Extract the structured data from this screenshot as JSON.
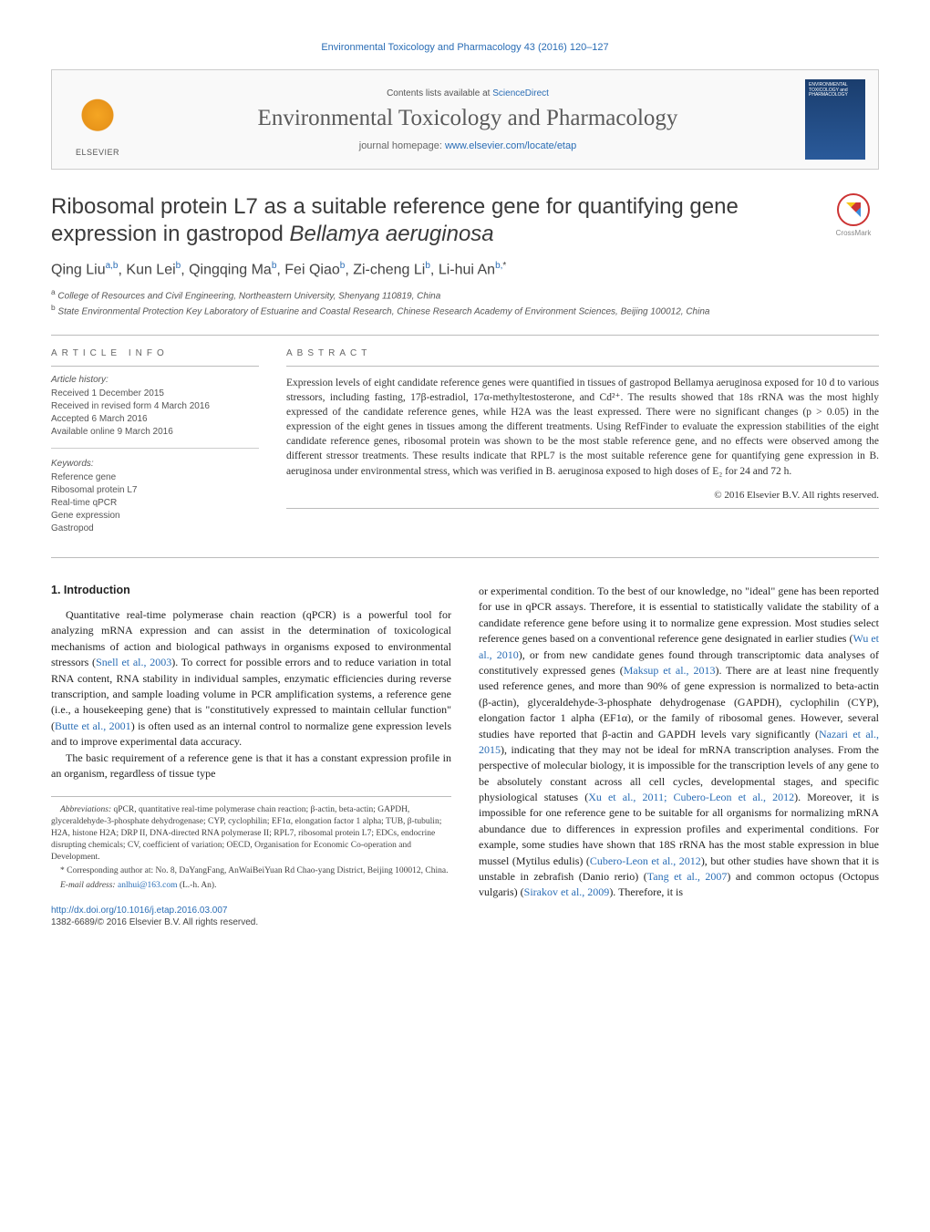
{
  "journal_header_link": "Environmental Toxicology and Pharmacology 43 (2016) 120–127",
  "masthead": {
    "elsevier_label": "ELSEVIER",
    "contents_prefix": "Contents lists available at ",
    "contents_link": "ScienceDirect",
    "journal_title": "Environmental Toxicology and Pharmacology",
    "homepage_prefix": "journal homepage: ",
    "homepage_link": "www.elsevier.com/locate/etap",
    "cover_text": "ENVIRONMENTAL TOXICOLOGY and PHARMACOLOGY"
  },
  "article": {
    "title_plain": "Ribosomal protein L7 as a suitable reference gene for quantifying gene expression in gastropod ",
    "title_italic": "Bellamya aeruginosa",
    "crossmark_label": "CrossMark",
    "authors_html": "Qing Liu<sup>a,b</sup>, Kun Lei<sup>b</sup>, Qingqing Ma<sup>b</sup>, Fei Qiao<sup>b</sup>, Zi-cheng Li<sup>b</sup>, Li-hui An<sup>b,</sup><sup class='star'>*</sup>",
    "affiliations": {
      "a": "College of Resources and Civil Engineering, Northeastern University, Shenyang 110819, China",
      "b": "State Environmental Protection Key Laboratory of Estuarine and Coastal Research, Chinese Research Academy of Environment Sciences, Beijing 100012, China"
    }
  },
  "info": {
    "section_label": "ARTICLE INFO",
    "history_label": "Article history:",
    "history": [
      "Received 1 December 2015",
      "Received in revised form 4 March 2016",
      "Accepted 6 March 2016",
      "Available online 9 March 2016"
    ],
    "keywords_label": "Keywords:",
    "keywords": [
      "Reference gene",
      "Ribosomal protein L7",
      "Real-time qPCR",
      "Gene expression",
      "Gastropod"
    ]
  },
  "abstract": {
    "section_label": "ABSTRACT",
    "text": "Expression levels of eight candidate reference genes were quantified in tissues of gastropod Bellamya aeruginosa exposed for 10 d to various stressors, including fasting, 17β-estradiol, 17α-methyltestosterone, and Cd²⁺. The results showed that 18s rRNA was the most highly expressed of the candidate reference genes, while H2A was the least expressed. There were no significant changes (p > 0.05) in the expression of the eight genes in tissues among the different treatments. Using RefFinder to evaluate the expression stabilities of the eight candidate reference genes, ribosomal protein was shown to be the most stable reference gene, and no effects were observed among the different stressor treatments. These results indicate that RPL7 is the most suitable reference gene for quantifying gene expression in B. aeruginosa under environmental stress, which was verified in B. aeruginosa exposed to high doses of E₂ for 24 and 72 h.",
    "copyright": "© 2016 Elsevier B.V. All rights reserved."
  },
  "body": {
    "heading": "1.  Introduction",
    "col1": {
      "p1_a": "Quantitative real-time polymerase chain reaction (qPCR) is a powerful tool for analyzing mRNA expression and can assist in the determination of toxicological mechanisms of action and biological pathways in organisms exposed to environmental stressors (",
      "p1_cite1": "Snell et al., 2003",
      "p1_b": "). To correct for possible errors and to reduce variation in total RNA content, RNA stability in individual samples, enzymatic efficiencies during reverse transcription, and sample loading volume in PCR amplification systems, a reference gene (i.e., a housekeeping gene) that is \"constitutively expressed to maintain cellular function\" (",
      "p1_cite2": "Butte et al., 2001",
      "p1_c": ") is often used as an internal control to normalize gene expression levels and to improve experimental data accuracy.",
      "p2": "The basic requirement of a reference gene is that it has a constant expression profile in an organism, regardless of tissue type"
    },
    "col2": {
      "p1_a": "or experimental condition. To the best of our knowledge, no \"ideal\" gene has been reported for use in qPCR assays. Therefore, it is essential to statistically validate the stability of a candidate reference gene before using it to normalize gene expression. Most studies select reference genes based on a conventional reference gene designated in earlier studies (",
      "p1_cite1": "Wu et al., 2010",
      "p1_b": "), or from new candidate genes found through transcriptomic data analyses of constitutively expressed genes (",
      "p1_cite2": "Maksup et al., 2013",
      "p1_c": "). There are at least nine frequently used reference genes, and more than 90% of gene expression is normalized to beta-actin (β-actin), glyceraldehyde-3-phosphate dehydrogenase (GAPDH), cyclophilin (CYP), elongation factor 1 alpha (EF1α), or the family of ribosomal genes. However, several studies have reported that β-actin and GAPDH levels vary significantly (",
      "p1_cite3": "Nazari et al., 2015",
      "p1_d": "), indicating that they may not be ideal for mRNA transcription analyses. From the perspective of molecular biology, it is impossible for the transcription levels of any gene to be absolutely constant across all cell cycles, developmental stages, and specific physiological statuses (",
      "p1_cite4": "Xu et al., 2011; Cubero-Leon et al., 2012",
      "p1_e": "). Moreover, it is impossible for one reference gene to be suitable for all organisms for normalizing mRNA abundance due to differences in expression profiles and experimental conditions. For example, some studies have shown that 18S rRNA has the most stable expression in blue mussel (Mytilus edulis) (",
      "p1_cite5": "Cubero-Leon et al., 2012",
      "p1_f": "), but other studies have shown that it is unstable in zebrafish (Danio rerio) (",
      "p1_cite6": "Tang et al., 2007",
      "p1_g": ") and common octopus (Octopus vulgaris) (",
      "p1_cite7": "Sirakov et al., 2009",
      "p1_h": "). Therefore, it is"
    }
  },
  "footnotes": {
    "abbrev_label": "Abbreviations:",
    "abbrev_text": " qPCR, quantitative real-time polymerase chain reaction; β-actin, beta-actin; GAPDH, glyceraldehyde-3-phosphate dehydrogenase; CYP, cyclophilin; EF1α, elongation factor 1 alpha; TUB, β-tubulin; H2A, histone H2A; DRP II, DNA-directed RNA polymerase II; RPL7, ribosomal protein L7; EDCs, endocrine disrupting chemicals; CV, coefficient of variation; OECD, Organisation for Economic Co-operation and Development.",
    "corr_label": "* Corresponding author at: ",
    "corr_text": "No. 8, DaYangFang, AnWaiBeiYuan Rd Chao-yang District, Beijing 100012, China.",
    "email_label": "E-mail address: ",
    "email_link": "anlhui@163.com",
    "email_suffix": " (L.-h. An)."
  },
  "footer": {
    "doi": "http://dx.doi.org/10.1016/j.etap.2016.03.007",
    "issn": "1382-6689/© 2016 Elsevier B.V. All rights reserved."
  },
  "colors": {
    "link": "#2a6db5",
    "text": "#333333",
    "rule": "#bbbbbb",
    "muted": "#555555"
  }
}
